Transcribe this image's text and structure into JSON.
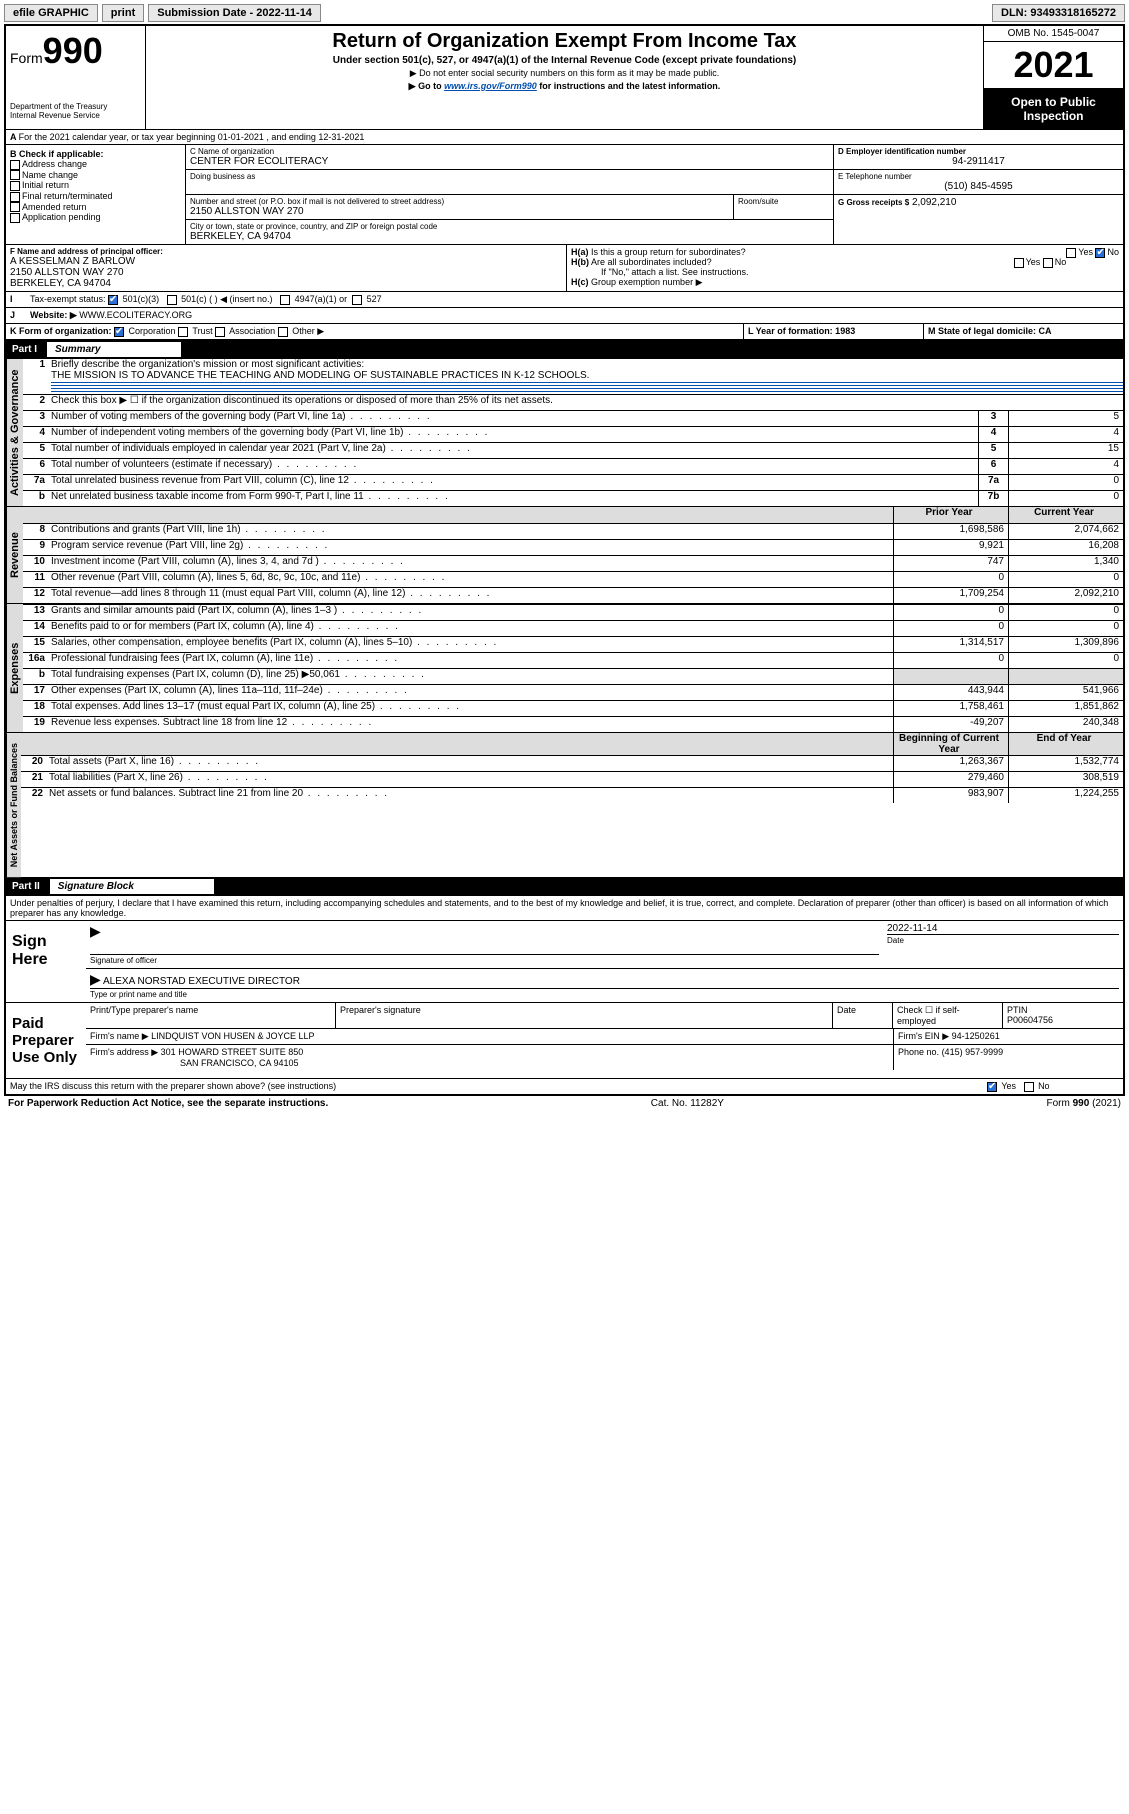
{
  "toolbar": {
    "efile": "efile GRAPHIC",
    "print": "print",
    "subdate_label": "Submission Date - 2022-11-14",
    "dln_label": "DLN: 93493318165272"
  },
  "header": {
    "form_prefix": "Form",
    "form_no": "990",
    "dept": "Department of the Treasury",
    "irs": "Internal Revenue Service",
    "title": "Return of Organization Exempt From Income Tax",
    "sub": "Under section 501(c), 527, or 4947(a)(1) of the Internal Revenue Code (except private foundations)",
    "note1": "▶ Do not enter social security numbers on this form as it may be made public.",
    "note2_pre": "▶ Go to ",
    "note2_link": "www.irs.gov/Form990",
    "note2_post": " for instructions and the latest information.",
    "omb": "OMB No. 1545-0047",
    "year": "2021",
    "open": "Open to Public Inspection"
  },
  "A": {
    "text": "For the 2021 calendar year, or tax year beginning 01-01-2021   , and ending 12-31-2021"
  },
  "B": {
    "title": "B Check if applicable:",
    "items": [
      "Address change",
      "Name change",
      "Initial return",
      "Final return/terminated",
      "Amended return",
      "Application pending"
    ]
  },
  "C": {
    "name_label": "C Name of organization",
    "name": "CENTER FOR ECOLITERACY",
    "dba_label": "Doing business as",
    "addr_label": "Number and street (or P.O. box if mail is not delivered to street address)",
    "room_label": "Room/suite",
    "addr": "2150 ALLSTON WAY 270",
    "city_label": "City or town, state or province, country, and ZIP or foreign postal code",
    "city": "BERKELEY, CA  94704"
  },
  "D": {
    "label": "D Employer identification number",
    "val": "94-2911417"
  },
  "E": {
    "label": "E Telephone number",
    "val": "(510) 845-4595"
  },
  "G": {
    "label": "G Gross receipts $",
    "val": "2,092,210"
  },
  "F": {
    "label": "F Name and address of principal officer:",
    "l1": "A KESSELMAN Z BARLOW",
    "l2": "2150 ALLSTON WAY 270",
    "l3": "BERKELEY, CA  94704"
  },
  "H": {
    "a": "Is this a group return for subordinates?",
    "a_yes": "Yes",
    "a_no": "No",
    "b": "Are all subordinates included?",
    "b_note": "If \"No,\" attach a list. See instructions.",
    "c": "Group exemption number ▶"
  },
  "I": {
    "label": "Tax-exempt status:",
    "o1": "501(c)(3)",
    "o2": "501(c) (  ) ◀ (insert no.)",
    "o3": "4947(a)(1) or",
    "o4": "527"
  },
  "J": {
    "label": "Website: ▶",
    "val": "WWW.ECOLITERACY.ORG"
  },
  "K": {
    "label": "K Form of organization:",
    "o1": "Corporation",
    "o2": "Trust",
    "o3": "Association",
    "o4": "Other ▶"
  },
  "L": {
    "label": "L Year of formation: 1983"
  },
  "M": {
    "label": "M State of legal domicile: CA"
  },
  "part1": {
    "bar_no": "Part I",
    "bar_title": "Summary",
    "q1": "Briefly describe the organization's mission or most significant activities:",
    "q1a": "THE MISSION IS TO ADVANCE THE TEACHING AND MODELING OF SUSTAINABLE PRACTICES IN K-12 SCHOOLS.",
    "q2": "Check this box ▶ ☐  if the organization discontinued its operations or disposed of more than 25% of its net assets.",
    "tabs": {
      "ag": "Activities & Governance",
      "rev": "Revenue",
      "exp": "Expenses",
      "na": "Net Assets or Fund Balances"
    },
    "col_prior": "Prior Year",
    "col_curr": "Current Year",
    "col_beg": "Beginning of Current Year",
    "col_end": "End of Year",
    "rows_ag": [
      {
        "n": "3",
        "t": "Number of voting members of the governing body (Part VI, line 1a)",
        "k": "3",
        "v": "5"
      },
      {
        "n": "4",
        "t": "Number of independent voting members of the governing body (Part VI, line 1b)",
        "k": "4",
        "v": "4"
      },
      {
        "n": "5",
        "t": "Total number of individuals employed in calendar year 2021 (Part V, line 2a)",
        "k": "5",
        "v": "15"
      },
      {
        "n": "6",
        "t": "Total number of volunteers (estimate if necessary)",
        "k": "6",
        "v": "4"
      },
      {
        "n": "7a",
        "t": "Total unrelated business revenue from Part VIII, column (C), line 12",
        "k": "7a",
        "v": "0"
      },
      {
        "n": "b",
        "t": "Net unrelated business taxable income from Form 990-T, Part I, line 11",
        "k": "7b",
        "v": "0"
      }
    ],
    "rows_rev": [
      {
        "n": "8",
        "t": "Contributions and grants (Part VIII, line 1h)",
        "p": "1,698,586",
        "c": "2,074,662"
      },
      {
        "n": "9",
        "t": "Program service revenue (Part VIII, line 2g)",
        "p": "9,921",
        "c": "16,208"
      },
      {
        "n": "10",
        "t": "Investment income (Part VIII, column (A), lines 3, 4, and 7d )",
        "p": "747",
        "c": "1,340"
      },
      {
        "n": "11",
        "t": "Other revenue (Part VIII, column (A), lines 5, 6d, 8c, 9c, 10c, and 11e)",
        "p": "0",
        "c": "0"
      },
      {
        "n": "12",
        "t": "Total revenue—add lines 8 through 11 (must equal Part VIII, column (A), line 12)",
        "p": "1,709,254",
        "c": "2,092,210"
      }
    ],
    "rows_exp": [
      {
        "n": "13",
        "t": "Grants and similar amounts paid (Part IX, column (A), lines 1–3 )",
        "p": "0",
        "c": "0"
      },
      {
        "n": "14",
        "t": "Benefits paid to or for members (Part IX, column (A), line 4)",
        "p": "0",
        "c": "0"
      },
      {
        "n": "15",
        "t": "Salaries, other compensation, employee benefits (Part IX, column (A), lines 5–10)",
        "p": "1,314,517",
        "c": "1,309,896"
      },
      {
        "n": "16a",
        "t": "Professional fundraising fees (Part IX, column (A), line 11e)",
        "p": "0",
        "c": "0"
      },
      {
        "n": "b",
        "t": "Total fundraising expenses (Part IX, column (D), line 25) ▶50,061",
        "p": "",
        "c": "",
        "shade": true
      },
      {
        "n": "17",
        "t": "Other expenses (Part IX, column (A), lines 11a–11d, 11f–24e)",
        "p": "443,944",
        "c": "541,966"
      },
      {
        "n": "18",
        "t": "Total expenses. Add lines 13–17 (must equal Part IX, column (A), line 25)",
        "p": "1,758,461",
        "c": "1,851,862"
      },
      {
        "n": "19",
        "t": "Revenue less expenses. Subtract line 18 from line 12",
        "p": "-49,207",
        "c": "240,348"
      }
    ],
    "rows_na": [
      {
        "n": "20",
        "t": "Total assets (Part X, line 16)",
        "p": "1,263,367",
        "c": "1,532,774"
      },
      {
        "n": "21",
        "t": "Total liabilities (Part X, line 26)",
        "p": "279,460",
        "c": "308,519"
      },
      {
        "n": "22",
        "t": "Net assets or fund balances. Subtract line 21 from line 20",
        "p": "983,907",
        "c": "1,224,255"
      }
    ]
  },
  "part2": {
    "bar_no": "Part II",
    "bar_title": "Signature Block",
    "decl": "Under penalties of perjury, I declare that I have examined this return, including accompanying schedules and statements, and to the best of my knowledge and belief, it is true, correct, and complete. Declaration of preparer (other than officer) is based on all information of which preparer has any knowledge.",
    "sign_here": "Sign Here",
    "sig_officer": "Signature of officer",
    "sig_date": "2022-11-14",
    "date_lbl": "Date",
    "officer_name": "ALEXA NORSTAD  EXECUTIVE DIRECTOR",
    "type_name": "Type or print name and title",
    "paid": "Paid Preparer Use Only",
    "prep_name_lbl": "Print/Type preparer's name",
    "prep_sig_lbl": "Preparer's signature",
    "prep_date_lbl": "Date",
    "check_self": "Check ☐ if self-employed",
    "ptin_lbl": "PTIN",
    "ptin": "P00604756",
    "firm_name_lbl": "Firm's name    ▶",
    "firm_name": "LINDQUIST VON HUSEN & JOYCE LLP",
    "firm_ein_lbl": "Firm's EIN ▶",
    "firm_ein": "94-1250261",
    "firm_addr_lbl": "Firm's address ▶",
    "firm_addr1": "301 HOWARD STREET SUITE 850",
    "firm_addr2": "SAN FRANCISCO, CA  94105",
    "phone_lbl": "Phone no.",
    "phone": "(415) 957-9999",
    "may_irs": "May the IRS discuss this return with the preparer shown above? (see instructions)",
    "yes": "Yes",
    "no": "No"
  },
  "footer": {
    "pra": "For Paperwork Reduction Act Notice, see the separate instructions.",
    "cat": "Cat. No. 11282Y",
    "form": "Form 990 (2021)"
  },
  "colors": {
    "link": "#004fae",
    "shade": "#dddddd",
    "check_blue": "#2a6fd6"
  }
}
